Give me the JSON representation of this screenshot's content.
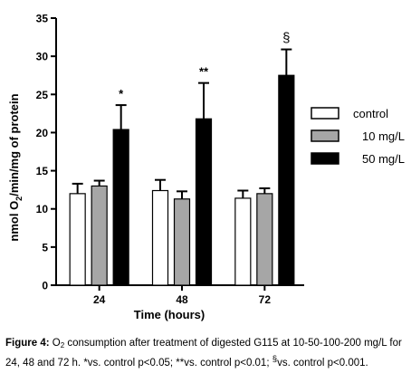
{
  "chart_data": {
    "type": "bar",
    "title": "",
    "xlabel": "Time (hours)",
    "ylabel_parts": [
      "nmol O",
      "2",
      "/min/mg of protein"
    ],
    "categories": [
      "24",
      "48",
      "72"
    ],
    "ylim": [
      0,
      35
    ],
    "yticks": [
      0,
      5,
      10,
      15,
      20,
      25,
      30,
      35
    ],
    "grid": false,
    "legend_position": "right",
    "series": [
      {
        "name": "control",
        "color": "#ffffff",
        "values": [
          12.0,
          12.4,
          11.4
        ],
        "errors": [
          1.3,
          1.4,
          1.0
        ]
      },
      {
        "name": "10 mg/L",
        "color": "#a6a6a6",
        "values": [
          13.0,
          11.3,
          12.0
        ],
        "errors": [
          0.7,
          1.0,
          0.7
        ]
      },
      {
        "name": "50 mg/L",
        "color": "#000000",
        "values": [
          20.4,
          21.8,
          27.5
        ],
        "errors": [
          3.2,
          4.7,
          3.4
        ]
      }
    ],
    "annotations": [
      {
        "category": "24",
        "series": "50 mg/L",
        "text": "*"
      },
      {
        "category": "48",
        "series": "50 mg/L",
        "text": "**"
      },
      {
        "category": "72",
        "series": "50 mg/L",
        "text": "§"
      }
    ]
  },
  "caption": {
    "label": "Figure 4:",
    "part1": " O",
    "sub": "2",
    "part2": " consumption after treatment of digested G115 at 10-50-100-200 mg/L for 24, 48 and 72 h. *vs. control p<0.05; **vs. control p<0.01; ",
    "sup": "§",
    "part3": "vs. control p<0.001."
  }
}
